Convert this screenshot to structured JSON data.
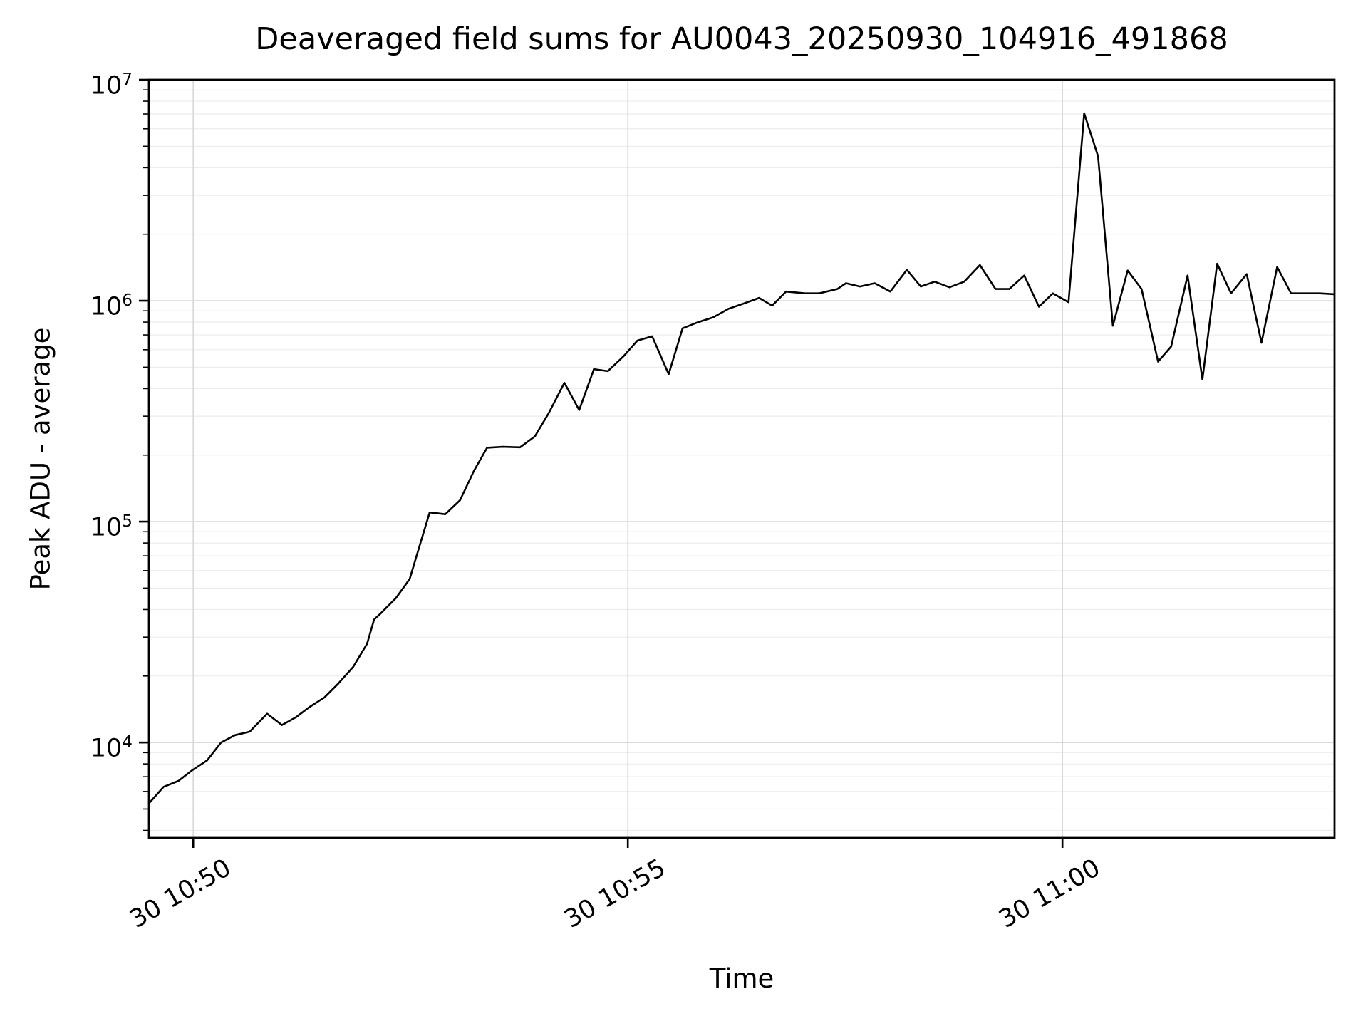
{
  "figure": {
    "background": "#ffffff",
    "text_color": "#000000"
  },
  "chart_data": {
    "type": "line",
    "title": "Deaveraged field sums for AU0043_20250930_104916_491868",
    "xlabel": "Time",
    "ylabel": "Peak ADU - average",
    "yscale": "log",
    "ylim": [
      3700,
      10000000
    ],
    "xlim": [
      -0.51,
      13.13
    ],
    "x_units": "minutes relative to 10:50",
    "grid": "both-y-major-x, minor-y shown lighter",
    "legend": "none",
    "line_color": "#000000",
    "grid_major_color": "#d9d9d9",
    "grid_minor_color": "#ececec",
    "xticks": [
      {
        "pos": 0,
        "label": "30 10:50"
      },
      {
        "pos": 5,
        "label": "30 10:55"
      },
      {
        "pos": 10,
        "label": "30 11:00"
      }
    ],
    "yticks": [
      {
        "value": 10000,
        "base": "10",
        "exp": "4"
      },
      {
        "value": 100000,
        "base": "10",
        "exp": "5"
      },
      {
        "value": 1000000,
        "base": "10",
        "exp": "6"
      },
      {
        "value": 10000000,
        "base": "10",
        "exp": "7"
      }
    ],
    "y_minor_ticks": [
      4000,
      5000,
      6000,
      7000,
      8000,
      9000,
      20000,
      30000,
      40000,
      50000,
      60000,
      70000,
      80000,
      90000,
      200000,
      300000,
      400000,
      500000,
      600000,
      700000,
      800000,
      900000,
      2000000,
      3000000,
      4000000,
      5000000,
      6000000,
      7000000,
      8000000,
      9000000
    ],
    "series": [
      {
        "name": "peak-adu-average",
        "points": [
          [
            -0.51,
            5300
          ],
          [
            -0.34,
            6300
          ],
          [
            -0.17,
            6700
          ],
          [
            -0.01,
            7500
          ],
          [
            0.16,
            8300
          ],
          [
            0.32,
            10000
          ],
          [
            0.48,
            10800
          ],
          [
            0.65,
            11200
          ],
          [
            0.85,
            13500
          ],
          [
            1.02,
            12000
          ],
          [
            1.18,
            13000
          ],
          [
            1.34,
            14500
          ],
          [
            1.51,
            16000
          ],
          [
            1.67,
            18500
          ],
          [
            1.84,
            22000
          ],
          [
            2.0,
            28000
          ],
          [
            2.08,
            36000
          ],
          [
            2.16,
            38500
          ],
          [
            2.33,
            45000
          ],
          [
            2.49,
            55000
          ],
          [
            2.57,
            70000
          ],
          [
            2.72,
            110000
          ],
          [
            2.9,
            108000
          ],
          [
            3.07,
            125000
          ],
          [
            3.23,
            170000
          ],
          [
            3.38,
            216000
          ],
          [
            3.56,
            218000
          ],
          [
            3.76,
            217000
          ],
          [
            3.93,
            243000
          ],
          [
            4.09,
            310000
          ],
          [
            4.27,
            425000
          ],
          [
            4.44,
            320000
          ],
          [
            4.61,
            490000
          ],
          [
            4.77,
            480000
          ],
          [
            4.95,
            560000
          ],
          [
            5.11,
            660000
          ],
          [
            5.28,
            690000
          ],
          [
            5.47,
            465000
          ],
          [
            5.63,
            750000
          ],
          [
            5.81,
            800000
          ],
          [
            5.98,
            840000
          ],
          [
            6.16,
            920000
          ],
          [
            6.33,
            970000
          ],
          [
            6.51,
            1030000
          ],
          [
            6.66,
            950000
          ],
          [
            6.82,
            1100000
          ],
          [
            7.04,
            1080000
          ],
          [
            7.2,
            1080000
          ],
          [
            7.41,
            1130000
          ],
          [
            7.51,
            1200000
          ],
          [
            7.67,
            1160000
          ],
          [
            7.84,
            1200000
          ],
          [
            8.02,
            1100000
          ],
          [
            8.21,
            1380000
          ],
          [
            8.37,
            1160000
          ],
          [
            8.53,
            1220000
          ],
          [
            8.7,
            1150000
          ],
          [
            8.87,
            1220000
          ],
          [
            9.05,
            1450000
          ],
          [
            9.23,
            1130000
          ],
          [
            9.39,
            1130000
          ],
          [
            9.56,
            1300000
          ],
          [
            9.73,
            940000
          ],
          [
            9.89,
            1080000
          ],
          [
            10.07,
            985000
          ],
          [
            10.25,
            7050000
          ],
          [
            10.41,
            4500000
          ],
          [
            10.58,
            770000
          ],
          [
            10.75,
            1370000
          ],
          [
            10.91,
            1130000
          ],
          [
            11.1,
            530000
          ],
          [
            11.25,
            620000
          ],
          [
            11.44,
            1300000
          ],
          [
            11.61,
            440000
          ],
          [
            11.78,
            1470000
          ],
          [
            11.94,
            1080000
          ],
          [
            12.12,
            1320000
          ],
          [
            12.29,
            645000
          ],
          [
            12.47,
            1420000
          ],
          [
            12.63,
            1080000
          ],
          [
            12.8,
            1080000
          ],
          [
            12.96,
            1080000
          ],
          [
            13.13,
            1070000
          ]
        ]
      }
    ]
  }
}
